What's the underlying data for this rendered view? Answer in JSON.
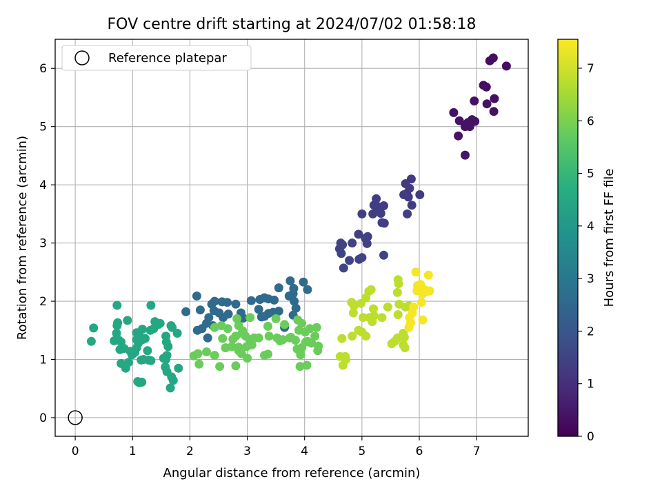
{
  "chart_data": {
    "type": "scatter",
    "title": "FOV centre drift starting at 2024/07/02 01:58:18",
    "xlabel": "Angular distance from reference (arcmin)",
    "ylabel": "Rotation from reference (arcmin)",
    "xlim": [
      -0.35,
      7.9
    ],
    "ylim": [
      -0.32,
      6.5
    ],
    "xticks": [
      0,
      1,
      2,
      3,
      4,
      5,
      6,
      7
    ],
    "yticks": [
      0,
      1,
      2,
      3,
      4,
      5,
      6
    ],
    "grid": true,
    "legend": {
      "placement": "top-left",
      "label": "Reference platepar"
    },
    "reference_point": {
      "x": 0,
      "y": 0
    },
    "colorbar": {
      "label": "Hours from first FF file",
      "range": [
        0,
        7.55
      ],
      "ticks": [
        0,
        1,
        2,
        3,
        4,
        5,
        6,
        7
      ],
      "colormap": "viridis"
    },
    "series": [
      {
        "points": [
          [
            7.23,
            6.13
          ],
          [
            7.29,
            6.18
          ],
          [
            7.52,
            6.04
          ],
          [
            7.12,
            5.71
          ],
          [
            7.17,
            5.68
          ],
          [
            7.31,
            5.48
          ],
          [
            7.18,
            5.39
          ],
          [
            7.3,
            5.26
          ],
          [
            6.96,
            5.44
          ],
          [
            6.6,
            5.24
          ],
          [
            6.7,
            5.1
          ],
          [
            6.85,
            5.07
          ],
          [
            6.92,
            5.12
          ],
          [
            6.97,
            5.09
          ],
          [
            6.8,
            5.0
          ],
          [
            6.88,
            5.0
          ],
          [
            6.68,
            4.84
          ],
          [
            6.8,
            4.51
          ],
          [
            5.76,
            4.02
          ],
          [
            5.86,
            4.1
          ],
          [
            5.83,
            3.94
          ],
          [
            5.78,
            3.85
          ],
          [
            5.73,
            3.83
          ],
          [
            5.81,
            3.79
          ],
          [
            6.01,
            3.83
          ],
          [
            5.87,
            3.65
          ],
          [
            5.79,
            3.5
          ],
          [
            5.25,
            3.76
          ],
          [
            5.21,
            3.65
          ],
          [
            5.3,
            3.62
          ],
          [
            5.38,
            3.64
          ],
          [
            5.27,
            3.55
          ],
          [
            5.33,
            3.51
          ],
          [
            5.19,
            3.5
          ],
          [
            5.35,
            3.35
          ],
          [
            5.39,
            3.34
          ],
          [
            5.0,
            3.5
          ],
          [
            4.94,
            3.15
          ],
          [
            5.06,
            3.08
          ],
          [
            5.1,
            3.11
          ],
          [
            5.09,
            2.99
          ],
          [
            4.63,
            3.0
          ],
          [
            4.66,
            2.97
          ],
          [
            4.61,
            2.9
          ],
          [
            4.64,
            2.82
          ],
          [
            4.83,
            3.0
          ],
          [
            4.95,
            2.72
          ],
          [
            4.78,
            2.7
          ],
          [
            4.68,
            2.57
          ],
          [
            5.0,
            2.75
          ],
          [
            5.38,
            2.79
          ]
        ]
      },
      {
        "points": [
          [
            2.12,
            2.09
          ],
          [
            1.93,
            1.82
          ],
          [
            2.18,
            1.85
          ],
          [
            2.38,
            1.95
          ],
          [
            2.43,
            2.0
          ],
          [
            2.56,
            1.99
          ],
          [
            2.65,
            1.98
          ],
          [
            2.8,
            1.95
          ],
          [
            2.42,
            1.84
          ],
          [
            2.51,
            1.8
          ],
          [
            2.58,
            1.72
          ],
          [
            2.67,
            1.78
          ],
          [
            2.33,
            1.72
          ],
          [
            2.29,
            1.62
          ],
          [
            2.4,
            1.58
          ],
          [
            2.31,
            1.37
          ],
          [
            2.21,
            1.53
          ],
          [
            2.13,
            1.5
          ],
          [
            2.89,
            1.8
          ],
          [
            2.93,
            1.71
          ],
          [
            3.07,
            2.01
          ],
          [
            3.22,
            2.03
          ],
          [
            3.3,
            2.06
          ],
          [
            3.37,
            2.04
          ],
          [
            3.47,
            2.02
          ],
          [
            3.55,
            2.23
          ],
          [
            3.75,
            2.35
          ],
          [
            3.81,
            2.22
          ],
          [
            3.8,
            2.13
          ],
          [
            3.73,
            2.09
          ],
          [
            3.82,
            2.0
          ],
          [
            3.85,
            1.88
          ],
          [
            3.98,
            2.33
          ],
          [
            4.05,
            2.2
          ],
          [
            3.2,
            1.86
          ],
          [
            3.37,
            1.79
          ],
          [
            3.45,
            1.81
          ],
          [
            3.55,
            1.83
          ],
          [
            3.8,
            1.76
          ],
          [
            3.25,
            1.73
          ],
          [
            3.3,
            1.74
          ],
          [
            3.65,
            1.55
          ]
        ]
      },
      {
        "points": [
          [
            0.73,
            1.93
          ],
          [
            1.32,
            1.93
          ],
          [
            0.91,
            1.67
          ],
          [
            0.74,
            1.63
          ],
          [
            0.73,
            1.58
          ],
          [
            0.32,
            1.54
          ],
          [
            0.28,
            1.31
          ],
          [
            0.68,
            1.32
          ],
          [
            0.76,
            1.33
          ],
          [
            0.8,
            1.3
          ],
          [
            0.72,
            1.45
          ],
          [
            1.07,
            1.46
          ],
          [
            1.12,
            1.4
          ],
          [
            1.17,
            1.52
          ],
          [
            1.39,
            1.65
          ],
          [
            1.45,
            1.6
          ],
          [
            1.48,
            1.62
          ],
          [
            1.37,
            1.53
          ],
          [
            1.31,
            1.5
          ],
          [
            1.58,
            1.4
          ],
          [
            1.69,
            1.55
          ],
          [
            1.67,
            1.58
          ],
          [
            1.78,
            1.45
          ],
          [
            1.07,
            1.34
          ],
          [
            1.1,
            1.28
          ],
          [
            1.17,
            1.34
          ],
          [
            1.22,
            1.36
          ],
          [
            1.26,
            1.15
          ],
          [
            1.04,
            1.12
          ],
          [
            0.96,
            1.14
          ],
          [
            0.78,
            1.17
          ],
          [
            0.85,
            1.19
          ],
          [
            1.19,
            1.0
          ],
          [
            1.28,
            0.99
          ],
          [
            1.32,
            0.98
          ],
          [
            1.15,
            0.99
          ],
          [
            0.93,
            0.95
          ],
          [
            0.8,
            0.93
          ],
          [
            0.88,
            0.85
          ],
          [
            0.99,
            1.08
          ],
          [
            1.07,
            1.2
          ],
          [
            1.54,
            1.02
          ],
          [
            1.58,
            1.0
          ],
          [
            1.6,
            1.07
          ],
          [
            1.57,
            0.87
          ],
          [
            1.6,
            0.79
          ],
          [
            1.68,
            0.7
          ],
          [
            1.71,
            0.64
          ],
          [
            1.8,
            0.85
          ],
          [
            1.66,
            0.51
          ],
          [
            1.09,
            0.62
          ],
          [
            1.12,
            0.6
          ],
          [
            1.16,
            0.61
          ],
          [
            1.59,
            1.3
          ],
          [
            1.62,
            1.22
          ]
        ]
      },
      {
        "points": [
          [
            2.43,
            1.55
          ],
          [
            2.55,
            1.58
          ],
          [
            2.66,
            1.53
          ],
          [
            2.82,
            1.7
          ],
          [
            2.85,
            1.58
          ],
          [
            2.92,
            1.49
          ],
          [
            3.05,
            1.72
          ],
          [
            2.91,
            1.45
          ],
          [
            2.97,
            1.4
          ],
          [
            3.04,
            1.34
          ],
          [
            2.8,
            1.4
          ],
          [
            2.75,
            1.35
          ],
          [
            2.57,
            1.36
          ],
          [
            2.62,
            1.2
          ],
          [
            2.73,
            1.22
          ],
          [
            2.85,
            1.21
          ],
          [
            2.99,
            1.22
          ],
          [
            3.08,
            1.25
          ],
          [
            3.12,
            1.37
          ],
          [
            3.2,
            1.37
          ],
          [
            2.85,
            1.15
          ],
          [
            2.9,
            1.1
          ],
          [
            3.0,
            1.02
          ],
          [
            2.43,
            1.07
          ],
          [
            2.29,
            1.13
          ],
          [
            2.14,
            1.1
          ],
          [
            2.07,
            1.06
          ],
          [
            2.16,
            0.92
          ],
          [
            2.52,
            0.88
          ],
          [
            2.8,
            0.89
          ],
          [
            3.3,
            1.07
          ],
          [
            3.36,
            1.09
          ],
          [
            3.38,
            1.4
          ],
          [
            3.36,
            1.57
          ],
          [
            3.5,
            1.7
          ],
          [
            3.65,
            1.6
          ],
          [
            3.52,
            1.37
          ],
          [
            3.57,
            1.32
          ],
          [
            3.62,
            1.34
          ],
          [
            3.74,
            1.37
          ],
          [
            3.76,
            1.38
          ],
          [
            3.84,
            1.33
          ],
          [
            3.87,
            1.18
          ],
          [
            3.93,
            1.08
          ],
          [
            3.95,
            1.2
          ],
          [
            4.02,
            1.3
          ],
          [
            4.05,
            1.31
          ],
          [
            4.12,
            1.28
          ],
          [
            3.9,
            1.5
          ],
          [
            4.01,
            1.47
          ],
          [
            4.09,
            1.53
          ],
          [
            4.21,
            1.55
          ],
          [
            4.18,
            1.4
          ],
          [
            3.92,
            0.88
          ],
          [
            4.04,
            0.9
          ],
          [
            4.24,
            1.23
          ],
          [
            4.23,
            1.15
          ],
          [
            3.88,
            1.68
          ],
          [
            3.95,
            1.62
          ]
        ]
      },
      {
        "points": [
          [
            4.82,
            1.98
          ],
          [
            4.86,
            1.92
          ],
          [
            4.98,
            1.96
          ],
          [
            5.07,
            2.06
          ],
          [
            5.12,
            2.17
          ],
          [
            5.16,
            2.2
          ],
          [
            4.85,
            1.8
          ],
          [
            5.02,
            1.72
          ],
          [
            5.13,
            1.72
          ],
          [
            5.18,
            1.65
          ],
          [
            5.21,
            1.75
          ],
          [
            5.2,
            1.87
          ],
          [
            5.35,
            1.72
          ],
          [
            5.45,
            1.9
          ],
          [
            4.65,
            1.36
          ],
          [
            4.83,
            1.4
          ],
          [
            4.94,
            1.5
          ],
          [
            5.0,
            1.47
          ],
          [
            5.07,
            1.4
          ],
          [
            4.62,
            1.05
          ],
          [
            4.72,
            1.0
          ],
          [
            4.71,
            1.05
          ],
          [
            4.67,
            0.9
          ],
          [
            5.52,
            1.27
          ],
          [
            5.57,
            1.31
          ],
          [
            5.62,
            1.37
          ],
          [
            5.72,
            1.45
          ],
          [
            5.74,
            1.38
          ],
          [
            5.72,
            1.25
          ],
          [
            5.75,
            1.2
          ],
          [
            5.63,
            2.37
          ],
          [
            5.64,
            2.3
          ],
          [
            5.62,
            2.15
          ],
          [
            5.65,
            1.95
          ],
          [
            5.63,
            1.77
          ],
          [
            5.76,
            1.9
          ],
          [
            5.82,
            1.92
          ]
        ]
      },
      {
        "points": [
          [
            5.94,
            2.5
          ],
          [
            6.16,
            2.45
          ],
          [
            5.97,
            2.27
          ],
          [
            6.02,
            2.29
          ],
          [
            6.04,
            2.24
          ],
          [
            6.0,
            2.21
          ],
          [
            5.96,
            2.18
          ],
          [
            6.09,
            2.2
          ],
          [
            6.14,
            2.17
          ],
          [
            6.18,
            2.18
          ],
          [
            6.06,
            2.13
          ],
          [
            6.04,
            1.98
          ],
          [
            5.9,
            1.9
          ],
          [
            5.88,
            1.8
          ],
          [
            5.83,
            1.72
          ],
          [
            5.85,
            1.63
          ],
          [
            5.82,
            1.55
          ],
          [
            6.06,
            1.68
          ]
        ]
      }
    ]
  }
}
